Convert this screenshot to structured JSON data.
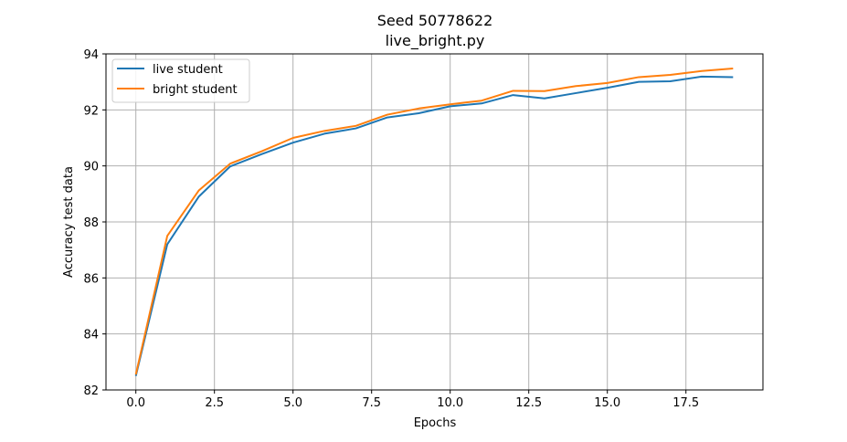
{
  "chart_data": {
    "type": "line",
    "title": "Seed 50778622",
    "subtitle": "live_bright.py",
    "xlabel": "Epochs",
    "ylabel": "Accuracy test data",
    "xlim": [
      -0.95,
      19.95
    ],
    "ylim": [
      82,
      94
    ],
    "xticks": [
      0.0,
      2.5,
      5.0,
      7.5,
      10.0,
      12.5,
      15.0,
      17.5
    ],
    "xtick_labels": [
      "0.0",
      "2.5",
      "5.0",
      "7.5",
      "10.0",
      "12.5",
      "15.0",
      "17.5"
    ],
    "yticks": [
      82,
      84,
      86,
      88,
      90,
      92,
      94
    ],
    "ytick_labels": [
      "82",
      "84",
      "86",
      "88",
      "90",
      "92",
      "94"
    ],
    "grid": true,
    "legend_position": "top-left",
    "x": [
      0,
      1,
      2,
      3,
      4,
      5,
      6,
      7,
      8,
      9,
      10,
      11,
      12,
      13,
      14,
      15,
      16,
      17,
      18,
      19
    ],
    "series": [
      {
        "name": "live student",
        "color": "#1f77b4",
        "values": [
          82.5,
          87.2,
          88.9,
          89.98,
          90.42,
          90.83,
          91.15,
          91.34,
          91.73,
          91.88,
          92.13,
          92.23,
          92.53,
          92.41,
          92.6,
          92.79,
          93.0,
          93.02,
          93.19,
          93.17
        ]
      },
      {
        "name": "bright student",
        "color": "#ff7f0e",
        "values": [
          82.55,
          87.5,
          89.12,
          90.08,
          90.52,
          91.0,
          91.25,
          91.43,
          91.83,
          92.05,
          92.2,
          92.33,
          92.68,
          92.67,
          92.85,
          92.96,
          93.17,
          93.25,
          93.39,
          93.48
        ]
      }
    ]
  }
}
